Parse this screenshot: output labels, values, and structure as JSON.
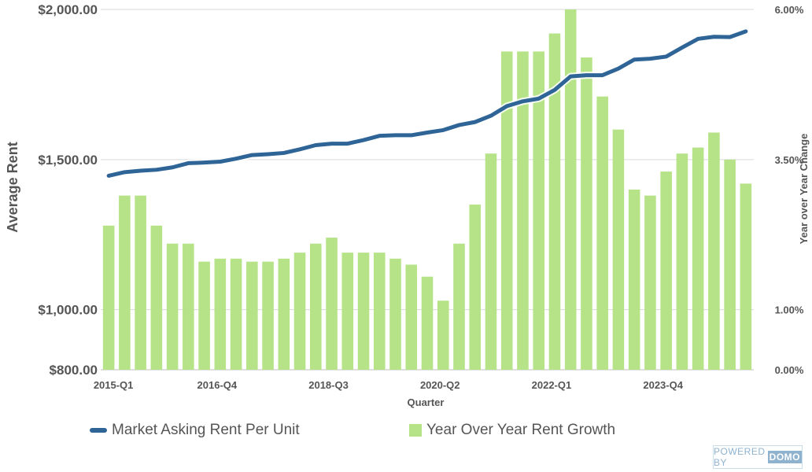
{
  "chart_data": {
    "type": "bar+line",
    "xlabel": "Quarter",
    "ylabel_left": "Average Rent",
    "ylabel_right": "Year over Year Change",
    "left_axis": {
      "min": 800,
      "max": 2000,
      "ticks": [
        800,
        1000,
        1500,
        2000
      ],
      "tick_labels": [
        "$800.00",
        "$1,000.00",
        "$1,500.00",
        "$2,000.00"
      ]
    },
    "right_axis": {
      "min": 0,
      "max": 6,
      "ticks": [
        0,
        1,
        3.5,
        6
      ],
      "tick_labels": [
        "0.00%",
        "1.00%",
        "3.50%",
        "6.00%"
      ]
    },
    "x_tick_labels": [
      {
        "index": 0,
        "label": "2015-Q1"
      },
      {
        "index": 7,
        "label": "2016-Q4"
      },
      {
        "index": 14,
        "label": "2018-Q3"
      },
      {
        "index": 21,
        "label": "2020-Q2"
      },
      {
        "index": 28,
        "label": "2022-Q1"
      },
      {
        "index": 35,
        "label": "2023-Q4"
      }
    ],
    "categories": [
      "2015-Q1",
      "2015-Q2",
      "2015-Q3",
      "2015-Q4",
      "2016-Q1",
      "2016-Q2",
      "2016-Q3",
      "2016-Q4",
      "2017-Q1",
      "2017-Q2",
      "2017-Q3",
      "2017-Q4",
      "2018-Q1",
      "2018-Q2",
      "2018-Q3",
      "2018-Q4",
      "2019-Q1",
      "2019-Q2",
      "2019-Q3",
      "2019-Q4",
      "2020-Q1",
      "2020-Q2",
      "2020-Q3",
      "2020-Q4",
      "2021-Q1",
      "2021-Q2",
      "2021-Q3",
      "2021-Q4",
      "2022-Q1",
      "2022-Q2",
      "2022-Q3",
      "2022-Q4",
      "2023-Q1",
      "2023-Q2",
      "2023-Q3",
      "2023-Q4",
      "2024-Q1",
      "2024-Q2",
      "2024-Q3",
      "2024-Q4",
      "2025-Q1"
    ],
    "series": [
      {
        "name": "Year Over Year Rent Growth",
        "type": "bar",
        "axis": "right",
        "color": "#b6e388",
        "values": [
          2.4,
          2.9,
          2.9,
          2.4,
          2.1,
          2.1,
          1.8,
          1.85,
          1.85,
          1.8,
          1.8,
          1.85,
          1.95,
          2.1,
          2.2,
          1.95,
          1.95,
          1.95,
          1.85,
          1.75,
          1.55,
          1.15,
          2.1,
          2.75,
          3.6,
          5.3,
          5.3,
          5.3,
          5.6,
          6.0,
          5.2,
          4.55,
          4.0,
          3.0,
          2.9,
          3.3,
          3.6,
          3.7,
          3.95,
          3.5,
          3.1
        ]
      },
      {
        "name": "Market Asking Rent Per Unit",
        "type": "line",
        "axis": "left",
        "color": "#2e6496",
        "values": [
          1446,
          1458,
          1463,
          1466,
          1474,
          1488,
          1490,
          1493,
          1503,
          1515,
          1518,
          1522,
          1534,
          1548,
          1553,
          1553,
          1565,
          1579,
          1581,
          1581,
          1590,
          1598,
          1615,
          1625,
          1646,
          1678,
          1694,
          1703,
          1732,
          1777,
          1781,
          1781,
          1803,
          1833,
          1836,
          1843,
          1873,
          1902,
          1909,
          1908,
          1927
        ]
      }
    ],
    "grid": true,
    "legend_position": "bottom"
  },
  "watermark": {
    "text": "POWERED BY",
    "brand": "DOMO"
  }
}
